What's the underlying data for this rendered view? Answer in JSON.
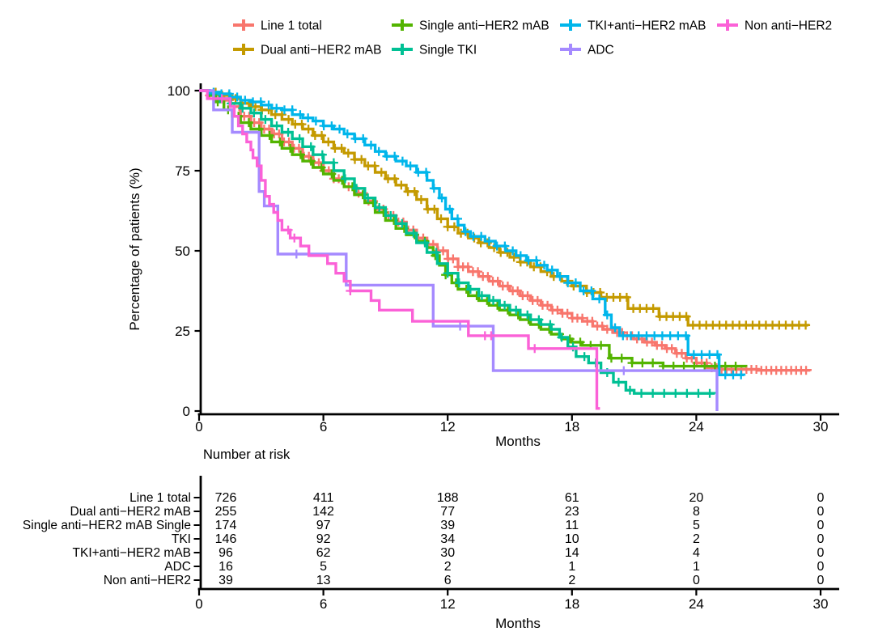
{
  "figure": {
    "background": "#ffffff",
    "axis_color": "#000000",
    "text_color": "#000000"
  },
  "chart_data": {
    "type": "line",
    "variant": "kaplan-meier-step",
    "title": "",
    "xlabel": "Months",
    "ylabel": "Percentage of patients (%)",
    "xlim": [
      0,
      30
    ],
    "ylim": [
      0,
      100
    ],
    "x_ticks": [
      0,
      6,
      12,
      18,
      24,
      30
    ],
    "y_ticks": [
      0,
      25,
      50,
      75,
      100
    ],
    "grid": false,
    "legend_position": "top",
    "legend_rows": [
      [
        "Line 1 total",
        "Single anti−HER2 mAB",
        "TKI+anti−HER2 mAB",
        "Non anti−HER2"
      ],
      [
        "Dual anti−HER2 mAB",
        "Single TKI",
        "ADC"
      ]
    ],
    "series": [
      {
        "name": "Line 1 total",
        "color": "#F8766D",
        "censor_interval": 0.24,
        "censor_start": 0.5,
        "steps": [
          [
            0,
            100
          ],
          [
            0.5,
            98.5
          ],
          [
            1,
            97
          ],
          [
            1.5,
            95
          ],
          [
            2,
            92
          ],
          [
            2.5,
            90
          ],
          [
            3,
            88
          ],
          [
            3.5,
            86.5
          ],
          [
            4,
            84
          ],
          [
            4.5,
            82
          ],
          [
            5,
            79.5
          ],
          [
            5.5,
            77.5
          ],
          [
            6,
            75
          ],
          [
            6.5,
            72.5
          ],
          [
            7,
            70
          ],
          [
            7.5,
            68
          ],
          [
            8,
            65.5
          ],
          [
            8.5,
            63
          ],
          [
            9,
            61
          ],
          [
            9.5,
            59
          ],
          [
            10,
            56.5
          ],
          [
            10.5,
            54
          ],
          [
            11,
            52
          ],
          [
            11.5,
            50
          ],
          [
            12,
            47.5
          ],
          [
            12.5,
            45
          ],
          [
            13,
            43.5
          ],
          [
            13.5,
            42
          ],
          [
            14,
            40.5
          ],
          [
            14.5,
            39
          ],
          [
            15,
            37.5
          ],
          [
            15.5,
            36
          ],
          [
            16,
            34.5
          ],
          [
            16.5,
            33
          ],
          [
            17,
            31.5
          ],
          [
            17.5,
            30.5
          ],
          [
            18,
            29
          ],
          [
            18.5,
            28
          ],
          [
            19,
            26.5
          ],
          [
            19.5,
            25.5
          ],
          [
            20,
            24.5
          ],
          [
            20.5,
            23.5
          ],
          [
            21,
            22.5
          ],
          [
            21.5,
            21.5
          ],
          [
            22,
            20.5
          ],
          [
            22.5,
            19.5
          ],
          [
            23,
            18
          ],
          [
            23.5,
            16.5
          ],
          [
            24,
            15
          ],
          [
            24.5,
            13.5
          ],
          [
            25,
            13
          ],
          [
            27,
            12.7
          ],
          [
            29.5,
            12.5
          ]
        ]
      },
      {
        "name": "Dual anti−HER2 mAB",
        "color": "#C49A00",
        "censor_interval": 0.32,
        "censor_start": 0.8,
        "steps": [
          [
            0,
            100
          ],
          [
            0.5,
            99.5
          ],
          [
            1,
            98.5
          ],
          [
            1.5,
            97.5
          ],
          [
            2,
            96
          ],
          [
            2.5,
            95
          ],
          [
            3,
            94
          ],
          [
            3.5,
            92.5
          ],
          [
            4,
            91
          ],
          [
            4.5,
            89.5
          ],
          [
            5,
            88
          ],
          [
            5.5,
            86
          ],
          [
            6,
            84
          ],
          [
            6.5,
            82
          ],
          [
            7,
            80.5
          ],
          [
            7.5,
            78.5
          ],
          [
            8,
            76.5
          ],
          [
            8.5,
            74.5
          ],
          [
            9,
            72.5
          ],
          [
            9.5,
            70.5
          ],
          [
            10,
            68.5
          ],
          [
            10.5,
            66
          ],
          [
            11,
            63
          ],
          [
            11.5,
            60
          ],
          [
            12,
            57.5
          ],
          [
            12.5,
            55.5
          ],
          [
            13,
            54
          ],
          [
            13.5,
            52.5
          ],
          [
            14,
            51
          ],
          [
            14.5,
            49.5
          ],
          [
            15,
            48
          ],
          [
            15.5,
            46.5
          ],
          [
            16,
            45
          ],
          [
            16.5,
            43.5
          ],
          [
            17,
            42
          ],
          [
            17.5,
            40.5
          ],
          [
            18,
            39
          ],
          [
            18.7,
            37
          ],
          [
            19.4,
            35.5
          ],
          [
            20.7,
            32
          ],
          [
            22.2,
            29.5
          ],
          [
            23.6,
            26.8
          ],
          [
            29.4,
            26.6
          ]
        ]
      },
      {
        "name": "Single anti−HER2 mAB",
        "color": "#53B400",
        "censor_interval": 0.5,
        "censor_start": 0.9,
        "steps": [
          [
            0,
            100
          ],
          [
            0.4,
            98.5
          ],
          [
            0.8,
            96.5
          ],
          [
            1.2,
            94
          ],
          [
            1.6,
            92
          ],
          [
            2,
            90
          ],
          [
            2.5,
            88
          ],
          [
            3,
            86
          ],
          [
            3.5,
            84
          ],
          [
            4,
            82
          ],
          [
            4.5,
            80
          ],
          [
            5,
            78
          ],
          [
            5.5,
            76
          ],
          [
            6,
            74
          ],
          [
            6.5,
            72
          ],
          [
            7,
            70
          ],
          [
            7.5,
            67.5
          ],
          [
            8,
            65
          ],
          [
            8.5,
            62
          ],
          [
            9,
            59.5
          ],
          [
            9.5,
            57
          ],
          [
            10,
            55
          ],
          [
            10.5,
            53
          ],
          [
            11,
            51
          ],
          [
            11.3,
            48.5
          ],
          [
            11.6,
            45.5
          ],
          [
            11.9,
            42.5
          ],
          [
            12.2,
            40
          ],
          [
            12.5,
            38
          ],
          [
            13,
            36
          ],
          [
            13.5,
            34.5
          ],
          [
            14,
            33
          ],
          [
            14.5,
            31.5
          ],
          [
            15,
            30
          ],
          [
            15.5,
            28.5
          ],
          [
            16,
            27
          ],
          [
            16.5,
            25.5
          ],
          [
            17,
            24
          ],
          [
            17.5,
            22.5
          ],
          [
            18,
            21.5
          ],
          [
            18.5,
            20.5
          ],
          [
            19.8,
            16.5
          ],
          [
            20.9,
            15
          ],
          [
            22.4,
            14
          ],
          [
            26.4,
            13.8
          ]
        ]
      },
      {
        "name": "Single TKI",
        "color": "#00C094",
        "censor_interval": 0.55,
        "censor_start": 1.0,
        "steps": [
          [
            0,
            100
          ],
          [
            0.5,
            99
          ],
          [
            1,
            97.5
          ],
          [
            1.5,
            96
          ],
          [
            2,
            94.5
          ],
          [
            2.5,
            93
          ],
          [
            3,
            91
          ],
          [
            3.5,
            89
          ],
          [
            4,
            87
          ],
          [
            4.5,
            85
          ],
          [
            5,
            82.5
          ],
          [
            5.5,
            80
          ],
          [
            6,
            77.5
          ],
          [
            6.5,
            75
          ],
          [
            7,
            72.5
          ],
          [
            7.5,
            69.5
          ],
          [
            8,
            66.5
          ],
          [
            8.5,
            63.5
          ],
          [
            9,
            61
          ],
          [
            9.5,
            58.5
          ],
          [
            10,
            55.5
          ],
          [
            10.5,
            52.5
          ],
          [
            11,
            49.5
          ],
          [
            11.5,
            46
          ],
          [
            12,
            43
          ],
          [
            12.5,
            40
          ],
          [
            13,
            38
          ],
          [
            13.5,
            36
          ],
          [
            14,
            34.5
          ],
          [
            14.5,
            33
          ],
          [
            15,
            31.5
          ],
          [
            15.5,
            30
          ],
          [
            16,
            28.5
          ],
          [
            16.5,
            27
          ],
          [
            17,
            25.5
          ],
          [
            17.4,
            23
          ],
          [
            17.8,
            20
          ],
          [
            18.2,
            17
          ],
          [
            18.8,
            15
          ],
          [
            19.4,
            12
          ],
          [
            20,
            9
          ],
          [
            20.6,
            6.5
          ],
          [
            21,
            5.5
          ],
          [
            24.9,
            5.4
          ]
        ]
      },
      {
        "name": "TKI+anti−HER2 mAB",
        "color": "#00B6EB",
        "censor_interval": 0.38,
        "censor_start": 0.7,
        "steps": [
          [
            0,
            100
          ],
          [
            0.5,
            99.5
          ],
          [
            1,
            99
          ],
          [
            1.5,
            98
          ],
          [
            2,
            97
          ],
          [
            2.5,
            96.5
          ],
          [
            3,
            95.5
          ],
          [
            3.5,
            94.5
          ],
          [
            4,
            94
          ],
          [
            4.5,
            92.5
          ],
          [
            5,
            91.5
          ],
          [
            5.5,
            90.5
          ],
          [
            6,
            89
          ],
          [
            6.5,
            88
          ],
          [
            7,
            86.5
          ],
          [
            7.5,
            85
          ],
          [
            8,
            83
          ],
          [
            8.5,
            81
          ],
          [
            9,
            79.5
          ],
          [
            9.5,
            78
          ],
          [
            10,
            76.5
          ],
          [
            10.5,
            74.5
          ],
          [
            11,
            72
          ],
          [
            11.3,
            69.5
          ],
          [
            11.6,
            66.5
          ],
          [
            11.9,
            63
          ],
          [
            12.2,
            60
          ],
          [
            12.5,
            58
          ],
          [
            12.8,
            56
          ],
          [
            13.1,
            54.5
          ],
          [
            13.8,
            53
          ],
          [
            14.3,
            51.5
          ],
          [
            14.8,
            50
          ],
          [
            15.3,
            48.5
          ],
          [
            15.8,
            47
          ],
          [
            16.3,
            45.5
          ],
          [
            16.8,
            44
          ],
          [
            17.3,
            42
          ],
          [
            17.8,
            40
          ],
          [
            18.4,
            37.5
          ],
          [
            19,
            35
          ],
          [
            19.6,
            30
          ],
          [
            19.9,
            26
          ],
          [
            20.3,
            23.5
          ],
          [
            23.6,
            17.6
          ],
          [
            25.1,
            11.3
          ],
          [
            26.3,
            11.2
          ]
        ]
      },
      {
        "name": "ADC",
        "color": "#A58AFF",
        "censors": [
          4.7,
          12.6,
          20.5
        ],
        "steps": [
          [
            0,
            100
          ],
          [
            0.7,
            94
          ],
          [
            1.6,
            87
          ],
          [
            2.9,
            68.5
          ],
          [
            3.15,
            64
          ],
          [
            3.8,
            49
          ],
          [
            7.1,
            39.3
          ],
          [
            11.3,
            26.5
          ],
          [
            14.2,
            12.6
          ],
          [
            25,
            0
          ]
        ]
      },
      {
        "name": "Non anti−HER2",
        "color": "#FB61D7",
        "censors": [
          1.1,
          4.3,
          4.6,
          7.3,
          13.8,
          14.1,
          16.2
        ],
        "steps": [
          [
            0,
            100
          ],
          [
            0.4,
            97.5
          ],
          [
            1.5,
            95
          ],
          [
            1.7,
            92
          ],
          [
            1.9,
            89
          ],
          [
            2.1,
            86.5
          ],
          [
            2.3,
            84
          ],
          [
            2.5,
            81.5
          ],
          [
            2.6,
            79
          ],
          [
            2.8,
            76.5
          ],
          [
            3,
            72
          ],
          [
            3.2,
            67
          ],
          [
            3.4,
            64.5
          ],
          [
            3.6,
            62
          ],
          [
            3.8,
            59.5
          ],
          [
            4,
            56.5
          ],
          [
            4.4,
            54
          ],
          [
            4.9,
            51.5
          ],
          [
            5.3,
            48.5
          ],
          [
            6.2,
            46
          ],
          [
            6.6,
            43
          ],
          [
            7,
            40.5
          ],
          [
            7.3,
            37.5
          ],
          [
            8.3,
            34.5
          ],
          [
            8.7,
            31.5
          ],
          [
            10.3,
            28
          ],
          [
            13,
            23.5
          ],
          [
            15.9,
            19.5
          ],
          [
            19.2,
            0.8
          ],
          [
            19.35,
            0.8
          ]
        ]
      }
    ],
    "risk_table": {
      "title": "Number at risk",
      "columns": [
        0,
        6,
        12,
        18,
        24,
        30
      ],
      "xlabel": "Months",
      "rows": [
        {
          "label": "Line 1 total",
          "values": [
            726,
            411,
            188,
            61,
            20,
            0
          ]
        },
        {
          "label": "Dual anti−HER2 mAB",
          "values": [
            255,
            142,
            77,
            23,
            8,
            0
          ]
        },
        {
          "label": "Single anti−HER2 mAB Single",
          "values": [
            174,
            97,
            39,
            11,
            5,
            0
          ]
        },
        {
          "label": "TKI",
          "values": [
            146,
            92,
            34,
            10,
            2,
            0
          ]
        },
        {
          "label": "TKI+anti−HER2 mAB",
          "values": [
            96,
            62,
            30,
            14,
            4,
            0
          ]
        },
        {
          "label": "ADC",
          "values": [
            16,
            5,
            2,
            1,
            1,
            0
          ]
        },
        {
          "label": "Non anti−HER2",
          "values": [
            39,
            13,
            6,
            2,
            0,
            0
          ]
        }
      ]
    }
  }
}
